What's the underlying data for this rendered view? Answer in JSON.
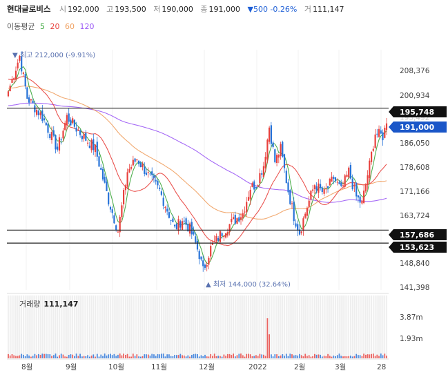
{
  "header": {
    "name": "현대글로비스",
    "open_label": "시",
    "open": "192,000",
    "high_label": "고",
    "high": "193,500",
    "low_label": "저",
    "low": "190,000",
    "close_label": "종",
    "close": "191,000",
    "change": "▼500 -0.26%",
    "volume_label": "거",
    "volume": "111,147"
  },
  "ma_legend": {
    "label": "이동평균",
    "periods": [
      {
        "text": "5",
        "color": "#3aa63a"
      },
      {
        "text": "20",
        "color": "#e8413d"
      },
      {
        "text": "60",
        "color": "#f0a060"
      },
      {
        "text": "120",
        "color": "#9b59f5"
      }
    ]
  },
  "annotations": {
    "max": "▼ 최고 212,000 (-9.91%)",
    "min": "▲ 최저 144,000 (32.64%)"
  },
  "volume_panel": {
    "label": "거래량",
    "value": "111,147"
  },
  "colors": {
    "up": "#e8413d",
    "down": "#2672d8",
    "line": "#222222",
    "current": "#1a56c8"
  },
  "chart_data": {
    "type": "candlestick",
    "price_axis": {
      "ticks": [
        "208,376",
        "200,934",
        "193,492",
        "186,050",
        "178,608",
        "171,166",
        "163,724",
        "148,840",
        "141,398"
      ],
      "range": [
        139000,
        214000
      ]
    },
    "horizontal_lines": [
      {
        "label": "195,748",
        "value": 195748
      },
      {
        "label": "157,686",
        "value": 157686
      },
      {
        "label": "153,623",
        "value": 153623
      }
    ],
    "current_price": {
      "label": "191,000",
      "value": 191000
    },
    "volume_axis": {
      "ticks": [
        "3.87m",
        "1.93m"
      ]
    },
    "x_labels": [
      "8월",
      "9월",
      "10월",
      "11월",
      "12월",
      "2022",
      "2월",
      "3월",
      "28"
    ],
    "keypoints": [
      {
        "i": 0,
        "p": 201000
      },
      {
        "i": 6,
        "p": 212000
      },
      {
        "i": 10,
        "p": 199000
      },
      {
        "i": 18,
        "p": 193000
      },
      {
        "i": 26,
        "p": 183000
      },
      {
        "i": 31,
        "p": 193000
      },
      {
        "i": 38,
        "p": 188000
      },
      {
        "i": 46,
        "p": 183000
      },
      {
        "i": 53,
        "p": 167000
      },
      {
        "i": 58,
        "p": 157500
      },
      {
        "i": 63,
        "p": 176000
      },
      {
        "i": 68,
        "p": 180000
      },
      {
        "i": 75,
        "p": 174000
      },
      {
        "i": 80,
        "p": 170000
      },
      {
        "i": 88,
        "p": 158000
      },
      {
        "i": 92,
        "p": 161000
      },
      {
        "i": 96,
        "p": 158000
      },
      {
        "i": 99,
        "p": 153500
      },
      {
        "i": 101,
        "p": 150000
      },
      {
        "i": 103,
        "p": 145000
      },
      {
        "i": 107,
        "p": 152000
      },
      {
        "i": 113,
        "p": 157000
      },
      {
        "i": 118,
        "p": 160000
      },
      {
        "i": 124,
        "p": 163000
      },
      {
        "i": 128,
        "p": 171000
      },
      {
        "i": 131,
        "p": 172000
      },
      {
        "i": 135,
        "p": 178000
      },
      {
        "i": 138,
        "p": 190000
      },
      {
        "i": 141,
        "p": 179000
      },
      {
        "i": 144,
        "p": 183000
      },
      {
        "i": 148,
        "p": 170000
      },
      {
        "i": 151,
        "p": 162000
      },
      {
        "i": 154,
        "p": 157000
      },
      {
        "i": 158,
        "p": 165000
      },
      {
        "i": 162,
        "p": 172000
      },
      {
        "i": 167,
        "p": 169000
      },
      {
        "i": 172,
        "p": 174000
      },
      {
        "i": 176,
        "p": 170000
      },
      {
        "i": 180,
        "p": 176000
      },
      {
        "i": 184,
        "p": 168000
      },
      {
        "i": 187,
        "p": 166000
      },
      {
        "i": 191,
        "p": 178000
      },
      {
        "i": 194,
        "p": 188000
      },
      {
        "i": 198,
        "p": 187000
      },
      {
        "i": 200,
        "p": 191000
      }
    ],
    "volume_spike": {
      "i": 137,
      "value": 3.0
    }
  }
}
